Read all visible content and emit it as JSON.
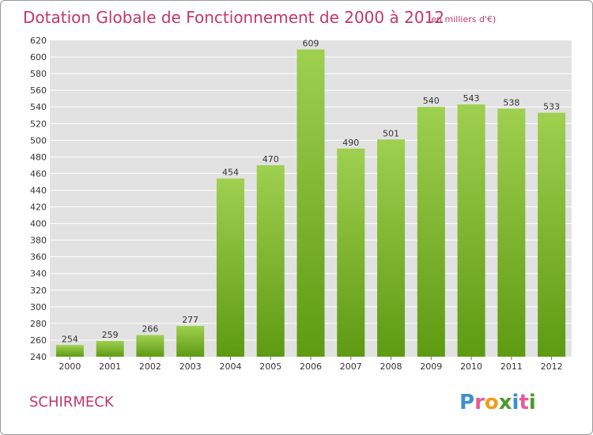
{
  "chart_data": {
    "type": "bar",
    "title": "Dotation Globale de Fonctionnement de 2000 à 2012",
    "unit_note": "(en milliers d'€)",
    "categories": [
      "2000",
      "2001",
      "2002",
      "2003",
      "2004",
      "2005",
      "2006",
      "2007",
      "2008",
      "2009",
      "2010",
      "2011",
      "2012"
    ],
    "values": [
      254,
      259,
      266,
      277,
      454,
      470,
      609,
      490,
      501,
      540,
      543,
      538,
      533
    ],
    "data_labels": [
      "254",
      "259",
      "266",
      "277",
      "454",
      "470",
      "609",
      "490",
      "501",
      "540",
      "543",
      "538",
      "533"
    ],
    "ylim": [
      240,
      620
    ],
    "yticks": [
      240,
      260,
      280,
      300,
      320,
      340,
      360,
      380,
      400,
      420,
      440,
      460,
      480,
      500,
      520,
      540,
      560,
      580,
      600,
      620
    ],
    "grid": true,
    "legend": "none",
    "colors": {
      "bar_light": "#9fd050",
      "bar_dark": "#5e9a12",
      "plot_bg": "#e2e2e2",
      "title": "#c3366a"
    }
  },
  "footer": {
    "city": "SCHIRMECK",
    "logo_letters": [
      "P",
      "r",
      "o",
      "x",
      "i",
      "t",
      "i"
    ],
    "logo_colors": [
      "#3a8fd0",
      "#e85a9a",
      "#f29a1a",
      "#4a9a2a",
      "#3a8fd0",
      "#e85a9a",
      "#4a9a2a"
    ]
  }
}
